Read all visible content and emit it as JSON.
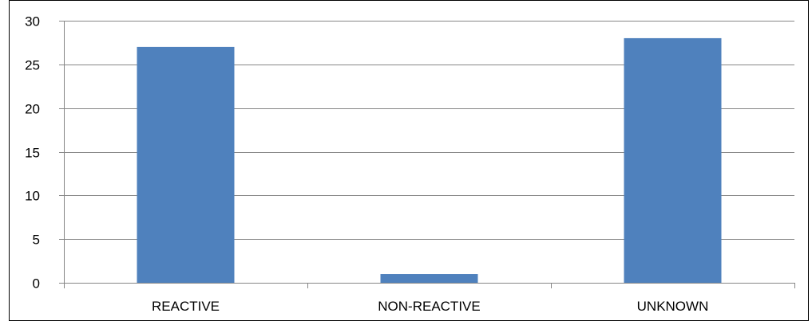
{
  "chart_data": {
    "type": "bar",
    "categories": [
      "REACTIVE",
      "NON-REACTIVE",
      "UNKNOWN"
    ],
    "values": [
      27,
      1,
      28
    ],
    "title": "",
    "xlabel": "",
    "ylabel": "",
    "ylim": [
      0,
      30
    ],
    "yticks": [
      0,
      5,
      10,
      15,
      20,
      25,
      30
    ],
    "grid": true,
    "legend": "none",
    "bar_color": "#4F81BD",
    "grid_color": "#868686",
    "axis_color": "#868686",
    "border_color": "#000000"
  }
}
